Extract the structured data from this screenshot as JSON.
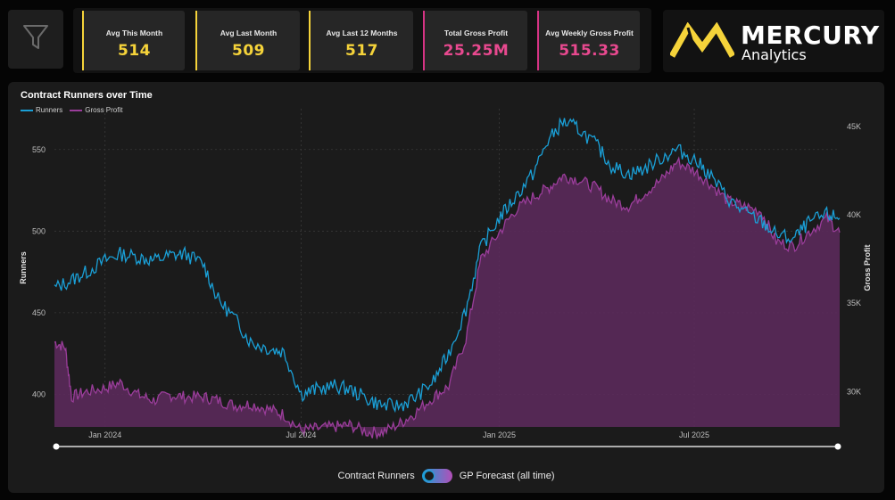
{
  "kpis": [
    {
      "label": "Avg This Month",
      "value": "514",
      "accent": "#f5d33a",
      "valueColor": "#f5d33a"
    },
    {
      "label": "Avg Last Month",
      "value": "509",
      "accent": "#f5d33a",
      "valueColor": "#f5d33a"
    },
    {
      "label": "Avg Last 12 Months",
      "value": "517",
      "accent": "#f5d33a",
      "valueColor": "#f5d33a"
    },
    {
      "label": "Total Gross Profit",
      "value": "25.25M",
      "accent": "#d63384",
      "valueColor": "#e8498f"
    },
    {
      "label": "Avg Weekly Gross Profit",
      "value": "515.33",
      "accent": "#d63384",
      "valueColor": "#e8498f"
    }
  ],
  "logo": {
    "name": "MERCURY",
    "sub": "Analytics",
    "color": "#f5d33a"
  },
  "filter": {
    "icon": "funnel-icon"
  },
  "toggle": {
    "left_label": "Contract Runners",
    "right_label": "GP Forecast (all time)",
    "state": "off"
  },
  "chart_data": {
    "type": "line",
    "title": "Contract Runners over Time",
    "series_colors": {
      "Runners": "#1a9fd6",
      "Gross Profit": "#9a3d9a"
    },
    "x_ticks": [
      "Jan 2024",
      "Jul 2024",
      "Jan 2025",
      "Jul 2025"
    ],
    "y_left": {
      "label": "Runners",
      "ticks": [
        400,
        450,
        500,
        550
      ],
      "range": [
        380,
        575
      ]
    },
    "y_right": {
      "label": "Gross Profit",
      "ticks": [
        "30K",
        "35K",
        "40K",
        "45K"
      ],
      "tick_values": [
        30000,
        35000,
        40000,
        45000
      ],
      "range": [
        28000,
        46000
      ]
    },
    "x_range": [
      "2023-11-15",
      "2025-11-13"
    ],
    "legend": "top-left",
    "series": [
      {
        "name": "Runners",
        "axis": "left",
        "points": [
          [
            "2023-11-15",
            465
          ],
          [
            "2023-12-01",
            470
          ],
          [
            "2023-12-15",
            475
          ],
          [
            "2024-01-01",
            482
          ],
          [
            "2024-01-15",
            486
          ],
          [
            "2024-02-01",
            484
          ],
          [
            "2024-02-15",
            482
          ],
          [
            "2024-03-01",
            485
          ],
          [
            "2024-03-15",
            486
          ],
          [
            "2024-04-01",
            480
          ],
          [
            "2024-04-15",
            458
          ],
          [
            "2024-05-01",
            446
          ],
          [
            "2024-05-15",
            432
          ],
          [
            "2024-06-01",
            428
          ],
          [
            "2024-06-15",
            426
          ],
          [
            "2024-07-01",
            400
          ],
          [
            "2024-07-15",
            403
          ],
          [
            "2024-08-01",
            405
          ],
          [
            "2024-08-15",
            403
          ],
          [
            "2024-09-01",
            397
          ],
          [
            "2024-09-15",
            393
          ],
          [
            "2024-10-01",
            393
          ],
          [
            "2024-10-15",
            398
          ],
          [
            "2024-11-01",
            408
          ],
          [
            "2024-11-15",
            425
          ],
          [
            "2024-12-01",
            452
          ],
          [
            "2024-12-15",
            490
          ],
          [
            "2025-01-01",
            508
          ],
          [
            "2025-01-15",
            520
          ],
          [
            "2025-02-01",
            535
          ],
          [
            "2025-02-15",
            555
          ],
          [
            "2025-03-01",
            567
          ],
          [
            "2025-03-15",
            563
          ],
          [
            "2025-04-01",
            553
          ],
          [
            "2025-04-15",
            540
          ],
          [
            "2025-05-01",
            535
          ],
          [
            "2025-05-15",
            538
          ],
          [
            "2025-06-01",
            545
          ],
          [
            "2025-06-15",
            550
          ],
          [
            "2025-07-01",
            544
          ],
          [
            "2025-07-15",
            535
          ],
          [
            "2025-08-01",
            520
          ],
          [
            "2025-08-15",
            512
          ],
          [
            "2025-09-01",
            506
          ],
          [
            "2025-09-15",
            498
          ],
          [
            "2025-10-01",
            495
          ],
          [
            "2025-10-15",
            505
          ],
          [
            "2025-11-01",
            510
          ],
          [
            "2025-11-13",
            508
          ]
        ]
      },
      {
        "name": "Gross Profit",
        "axis": "right",
        "points": [
          [
            "2023-11-15",
            32800
          ],
          [
            "2023-11-25",
            32500
          ],
          [
            "2023-12-01",
            29700
          ],
          [
            "2023-12-15",
            30000
          ],
          [
            "2024-01-01",
            30200
          ],
          [
            "2024-01-15",
            30500
          ],
          [
            "2024-02-01",
            29800
          ],
          [
            "2024-02-15",
            29500
          ],
          [
            "2024-03-01",
            29800
          ],
          [
            "2024-03-15",
            29700
          ],
          [
            "2024-04-01",
            29700
          ],
          [
            "2024-04-15",
            29500
          ],
          [
            "2024-05-01",
            29200
          ],
          [
            "2024-05-15",
            29300
          ],
          [
            "2024-06-01",
            29000
          ],
          [
            "2024-06-15",
            28700
          ],
          [
            "2024-07-01",
            27800
          ],
          [
            "2024-07-15",
            27900
          ],
          [
            "2024-08-01",
            28000
          ],
          [
            "2024-08-15",
            28100
          ],
          [
            "2024-09-01",
            27700
          ],
          [
            "2024-09-15",
            27700
          ],
          [
            "2024-10-01",
            28200
          ],
          [
            "2024-10-15",
            28800
          ],
          [
            "2024-11-01",
            29700
          ],
          [
            "2024-11-15",
            30300
          ],
          [
            "2024-12-01",
            33000
          ],
          [
            "2024-12-15",
            37500
          ],
          [
            "2025-01-01",
            39000
          ],
          [
            "2025-01-15",
            40200
          ],
          [
            "2025-02-01",
            41000
          ],
          [
            "2025-02-15",
            41500
          ],
          [
            "2025-03-01",
            42200
          ],
          [
            "2025-03-15",
            42000
          ],
          [
            "2025-04-01",
            41500
          ],
          [
            "2025-04-15",
            40800
          ],
          [
            "2025-05-01",
            40500
          ],
          [
            "2025-05-15",
            41200
          ],
          [
            "2025-06-01",
            42000
          ],
          [
            "2025-06-15",
            43000
          ],
          [
            "2025-07-01",
            42500
          ],
          [
            "2025-07-15",
            41800
          ],
          [
            "2025-08-01",
            40800
          ],
          [
            "2025-08-15",
            40500
          ],
          [
            "2025-09-01",
            40200
          ],
          [
            "2025-09-15",
            38500
          ],
          [
            "2025-10-01",
            38200
          ],
          [
            "2025-10-15",
            39000
          ],
          [
            "2025-11-01",
            39800
          ],
          [
            "2025-11-13",
            39000
          ]
        ]
      }
    ]
  }
}
